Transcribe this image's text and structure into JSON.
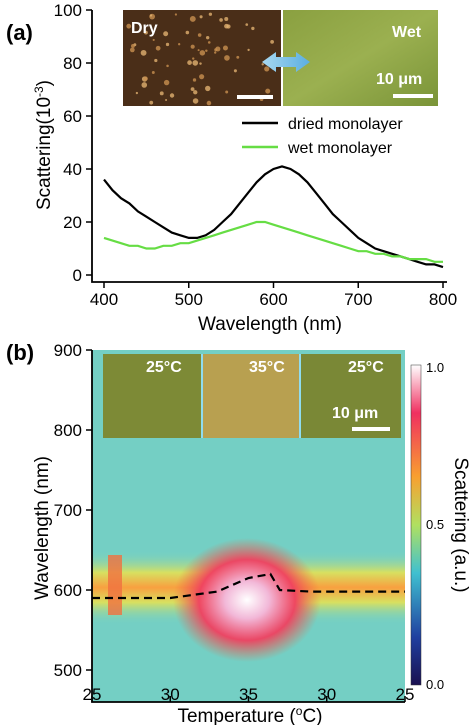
{
  "chart_data": [
    {
      "panel_label": "(a)",
      "type": "line",
      "xlabel": "Wavelength (nm)",
      "ylabel": "Scattering(10-3)",
      "xlim": [
        400,
        800
      ],
      "ylim": [
        0,
        100
      ],
      "xticks": [
        "400",
        "500",
        "600",
        "700",
        "800"
      ],
      "yticks": [
        "0",
        "20",
        "40",
        "60",
        "80",
        "100"
      ],
      "legend_position": "middle-right",
      "series": [
        {
          "name": "dried monolayer",
          "color": "#000000",
          "x": [
            400,
            410,
            420,
            430,
            440,
            450,
            460,
            470,
            480,
            490,
            500,
            510,
            520,
            530,
            540,
            550,
            560,
            570,
            580,
            590,
            600,
            610,
            620,
            630,
            640,
            650,
            660,
            670,
            680,
            690,
            700,
            710,
            720,
            730,
            740,
            750,
            760,
            770,
            780,
            790,
            800
          ],
          "y": [
            36,
            32,
            29,
            27,
            24,
            22,
            20,
            18,
            16,
            15,
            14,
            14,
            15,
            17,
            20,
            23,
            27,
            31,
            35,
            38,
            40,
            41,
            40,
            38,
            35,
            31,
            27,
            23,
            20,
            17,
            14,
            12,
            10,
            9,
            8,
            7,
            6,
            5,
            4,
            4,
            3
          ]
        },
        {
          "name": "wet monolayer",
          "color": "#66dd44",
          "x": [
            400,
            410,
            420,
            430,
            440,
            450,
            460,
            470,
            480,
            490,
            500,
            510,
            520,
            530,
            540,
            550,
            560,
            570,
            580,
            590,
            600,
            610,
            620,
            630,
            640,
            650,
            660,
            670,
            680,
            690,
            700,
            710,
            720,
            730,
            740,
            750,
            760,
            770,
            780,
            790,
            800
          ],
          "y": [
            14,
            13,
            12,
            11,
            11,
            10,
            10,
            11,
            11,
            12,
            12,
            13,
            14,
            15,
            16,
            17,
            18,
            19,
            20,
            20,
            19,
            18,
            17,
            16,
            15,
            14,
            13,
            12,
            11,
            10,
            9,
            9,
            8,
            8,
            7,
            7,
            6,
            6,
            6,
            5,
            5
          ]
        }
      ],
      "inset": {
        "left_label": "Dry",
        "right_label": "Wet",
        "scale_bar": "10 μm"
      }
    },
    {
      "panel_label": "(b)",
      "type": "heatmap",
      "xlabel": "Temperature (oC)",
      "ylabel": "Wavelength (nm)",
      "xticks": [
        "25",
        "30",
        "35",
        "30",
        "25"
      ],
      "yticks": [
        "500",
        "600",
        "700",
        "800",
        "900"
      ],
      "ylim": [
        460,
        900
      ],
      "colorbar": {
        "label": "Scattering  (a.u.)",
        "ticks": [
          "0.0",
          "0.5",
          "1.0"
        ]
      },
      "dashed_line": {
        "x_fraction": [
          0,
          0.25,
          0.4,
          0.5,
          0.57,
          0.6,
          0.7,
          1.0
        ],
        "wavelength": [
          590,
          590,
          598,
          615,
          620,
          600,
          598,
          598
        ]
      },
      "inset": {
        "labels": [
          "25°C",
          "35°C",
          "25°C"
        ],
        "scale_bar": "10 μm"
      }
    }
  ]
}
